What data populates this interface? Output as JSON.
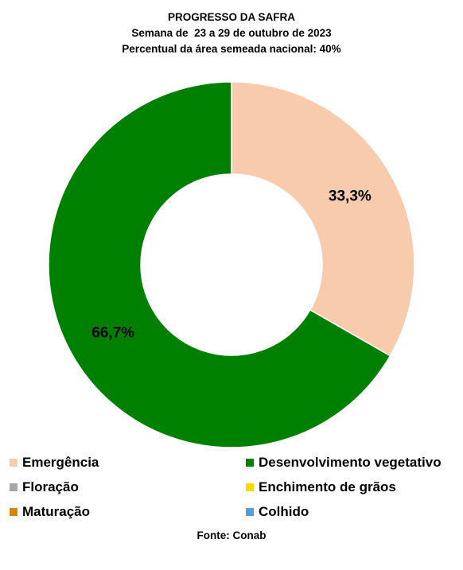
{
  "chart_data": {
    "type": "pie",
    "style": "donut",
    "title": "PROGRESSO DA SAFRA",
    "subtitle_line1": "Semana de  23 a 29 de outubro de 2023",
    "subtitle_line2": "Percentual da área semeada nacional: 40%",
    "categories": [
      "Emergência",
      "Desenvolvimento vegetativo",
      "Floração",
      "Enchimento de grãos",
      "Maturação",
      "Colhido"
    ],
    "values": [
      33.3,
      66.7,
      0,
      0,
      0,
      0
    ],
    "value_labels": [
      "33,3%",
      "66,7%",
      "",
      "",
      "",
      ""
    ],
    "colors": [
      "#F8CBAD",
      "#008000",
      "#A6A6A6",
      "#FFD700",
      "#D4860B",
      "#5B9BD5"
    ],
    "legend_position": "bottom",
    "source": "Fonte: Conab"
  }
}
